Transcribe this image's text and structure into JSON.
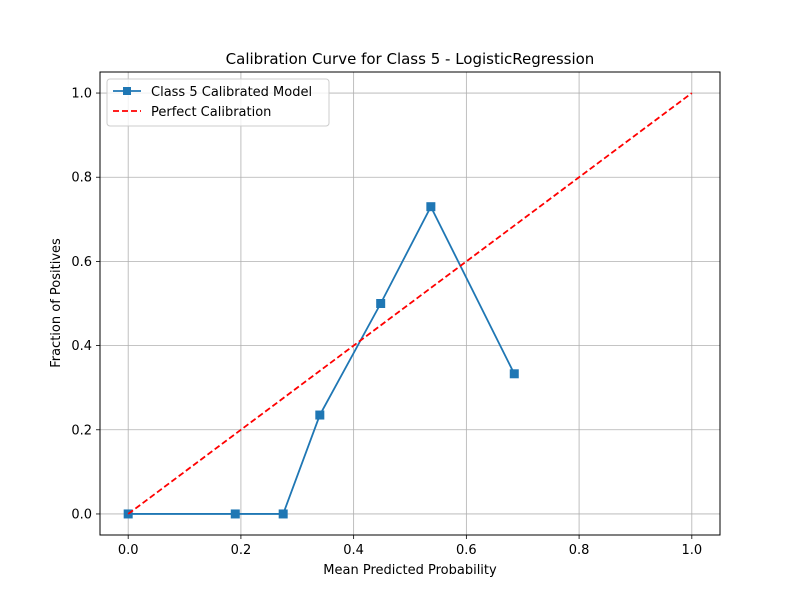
{
  "chart_data": {
    "type": "line",
    "title": "Calibration Curve for Class 5 - LogisticRegression",
    "xlabel": "Mean Predicted Probability",
    "ylabel": "Fraction of Positives",
    "xlim": [
      -0.05,
      1.05
    ],
    "ylim": [
      -0.05,
      1.05
    ],
    "xticks": [
      "0.0",
      "0.2",
      "0.4",
      "0.6",
      "0.8",
      "1.0"
    ],
    "yticks": [
      "0.0",
      "0.2",
      "0.4",
      "0.6",
      "0.8",
      "1.0"
    ],
    "grid": true,
    "legend_position": "top-left",
    "series": [
      {
        "name": "Class 5 Calibrated Model",
        "color": "#1f77b4",
        "style": "solid",
        "marker": "square",
        "x": [
          0.0,
          0.19,
          0.275,
          0.34,
          0.448,
          0.537,
          0.685
        ],
        "y": [
          0.0,
          0.0,
          0.0,
          0.235,
          0.5,
          0.73,
          0.333
        ]
      },
      {
        "name": "Perfect Calibration",
        "color": "#ff0000",
        "style": "dashed",
        "marker": "none",
        "x": [
          0.0,
          1.0
        ],
        "y": [
          0.0,
          1.0
        ]
      }
    ]
  }
}
